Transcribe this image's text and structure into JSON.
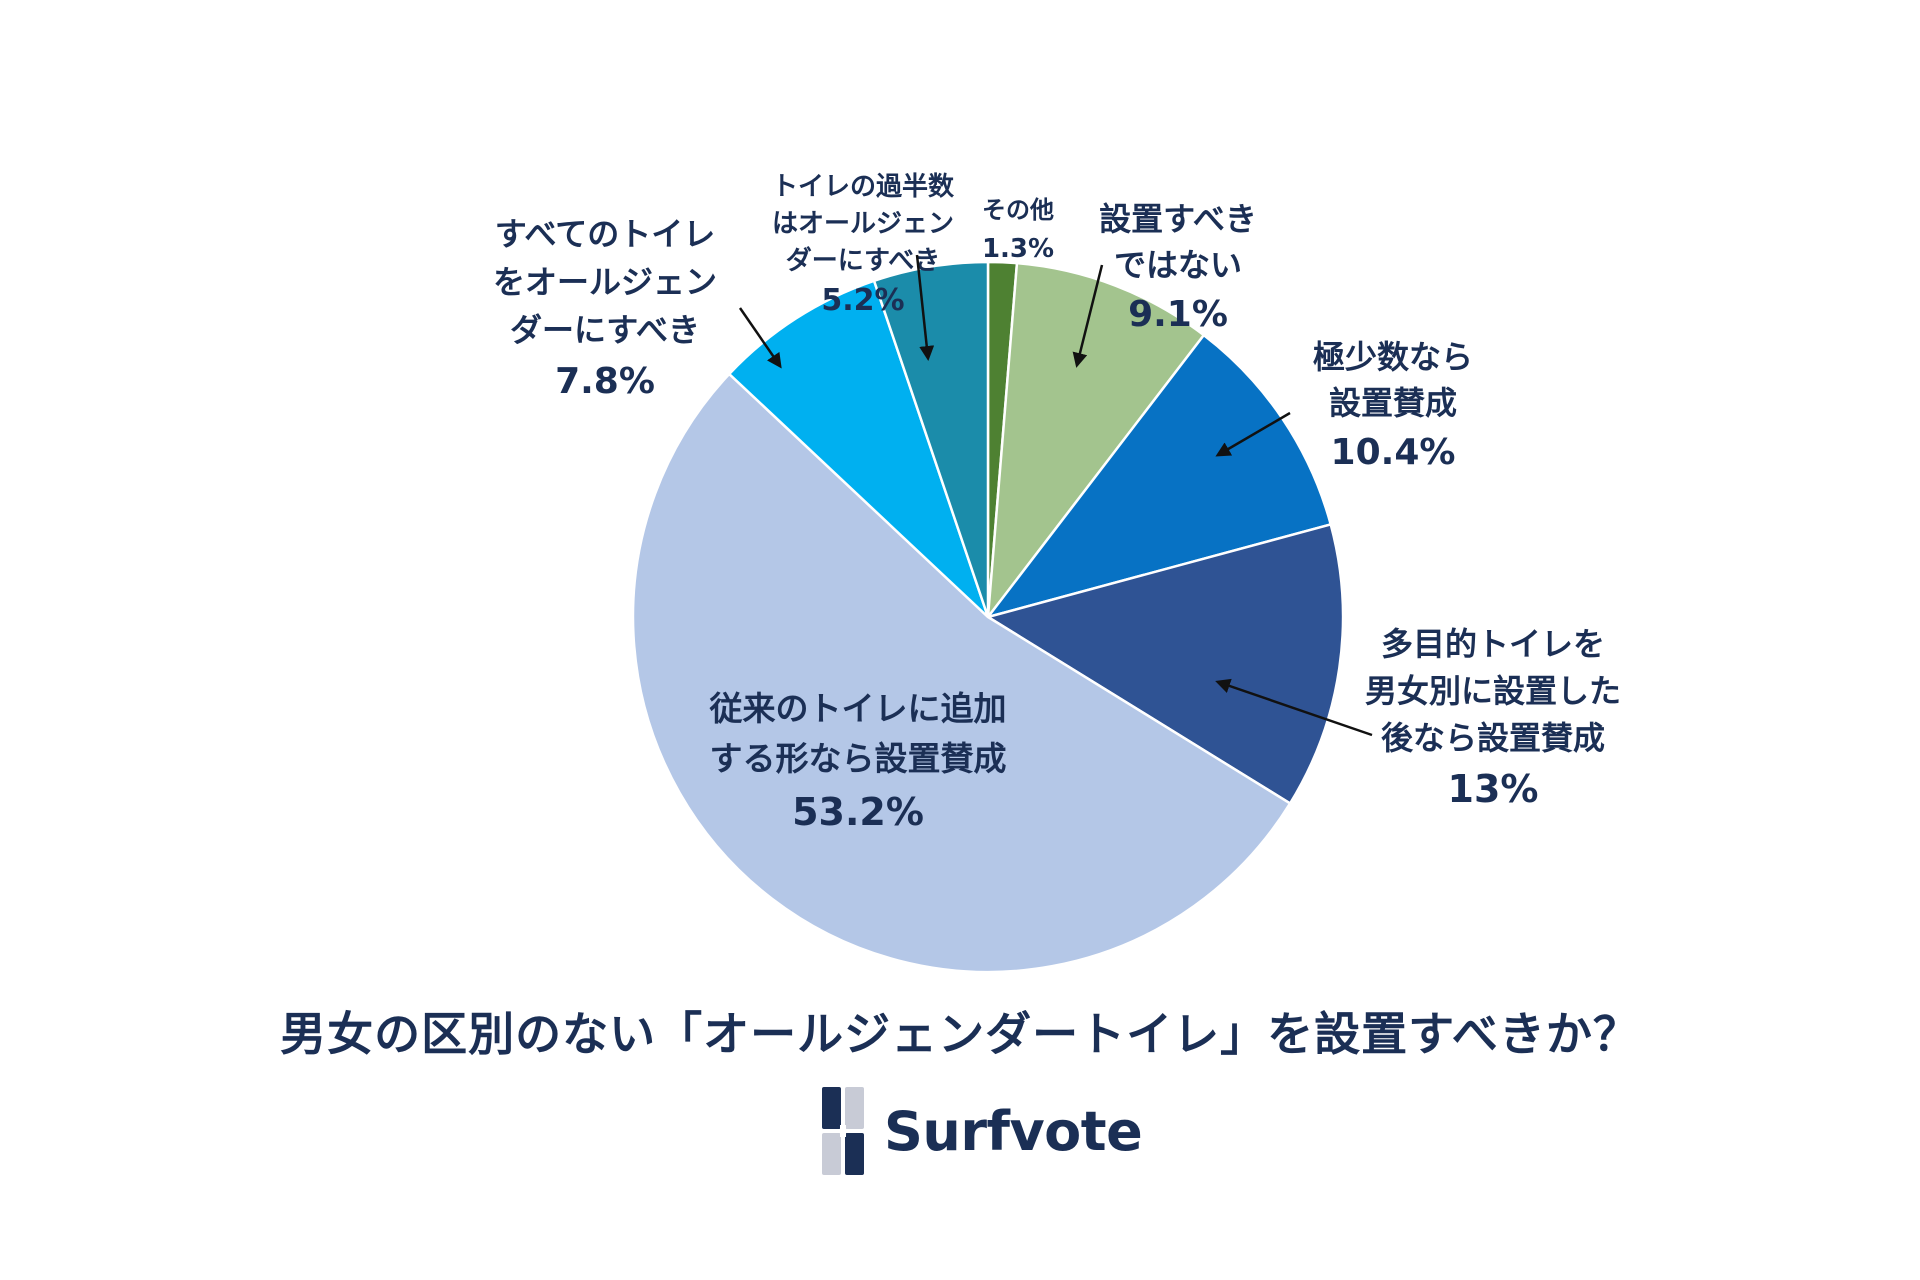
{
  "chart_data": {
    "type": "pie",
    "title": "男女の区別のない「オールジェンダートイレ」を設置すべきか？",
    "slices": [
      {
        "label": [
          "その他"
        ],
        "value": 1.3,
        "value_text": "1.3%",
        "color": "#4e8132"
      },
      {
        "label": [
          "設置すべき",
          "ではない"
        ],
        "value": 9.1,
        "value_text": "9.1%",
        "color": "#a3c48e"
      },
      {
        "label": [
          "極少数なら",
          "設置賛成"
        ],
        "value": 10.4,
        "value_text": "10.4%",
        "color": "#0772c4"
      },
      {
        "label": [
          "多目的トイレを",
          "男女別に設置した",
          "後なら設置賛成"
        ],
        "value": 13,
        "value_text": "13%",
        "color": "#2f5394"
      },
      {
        "label": [
          "従来のトイレに追加",
          "する形なら設置賛成"
        ],
        "value": 53.2,
        "value_text": "53.2%",
        "color": "#b4c7e7"
      },
      {
        "label": [
          "すべてのトイレ",
          "をオールジェン",
          "ダーにすべき"
        ],
        "value": 7.8,
        "value_text": "7.8%",
        "color": "#00b0f0"
      },
      {
        "label": [
          "トイレの過半数",
          "はオールジェン",
          "ダーにすべき"
        ],
        "value": 5.2,
        "value_text": "5.2%",
        "color": "#1b8caa"
      }
    ]
  },
  "brand": {
    "name": "Surfvote"
  }
}
